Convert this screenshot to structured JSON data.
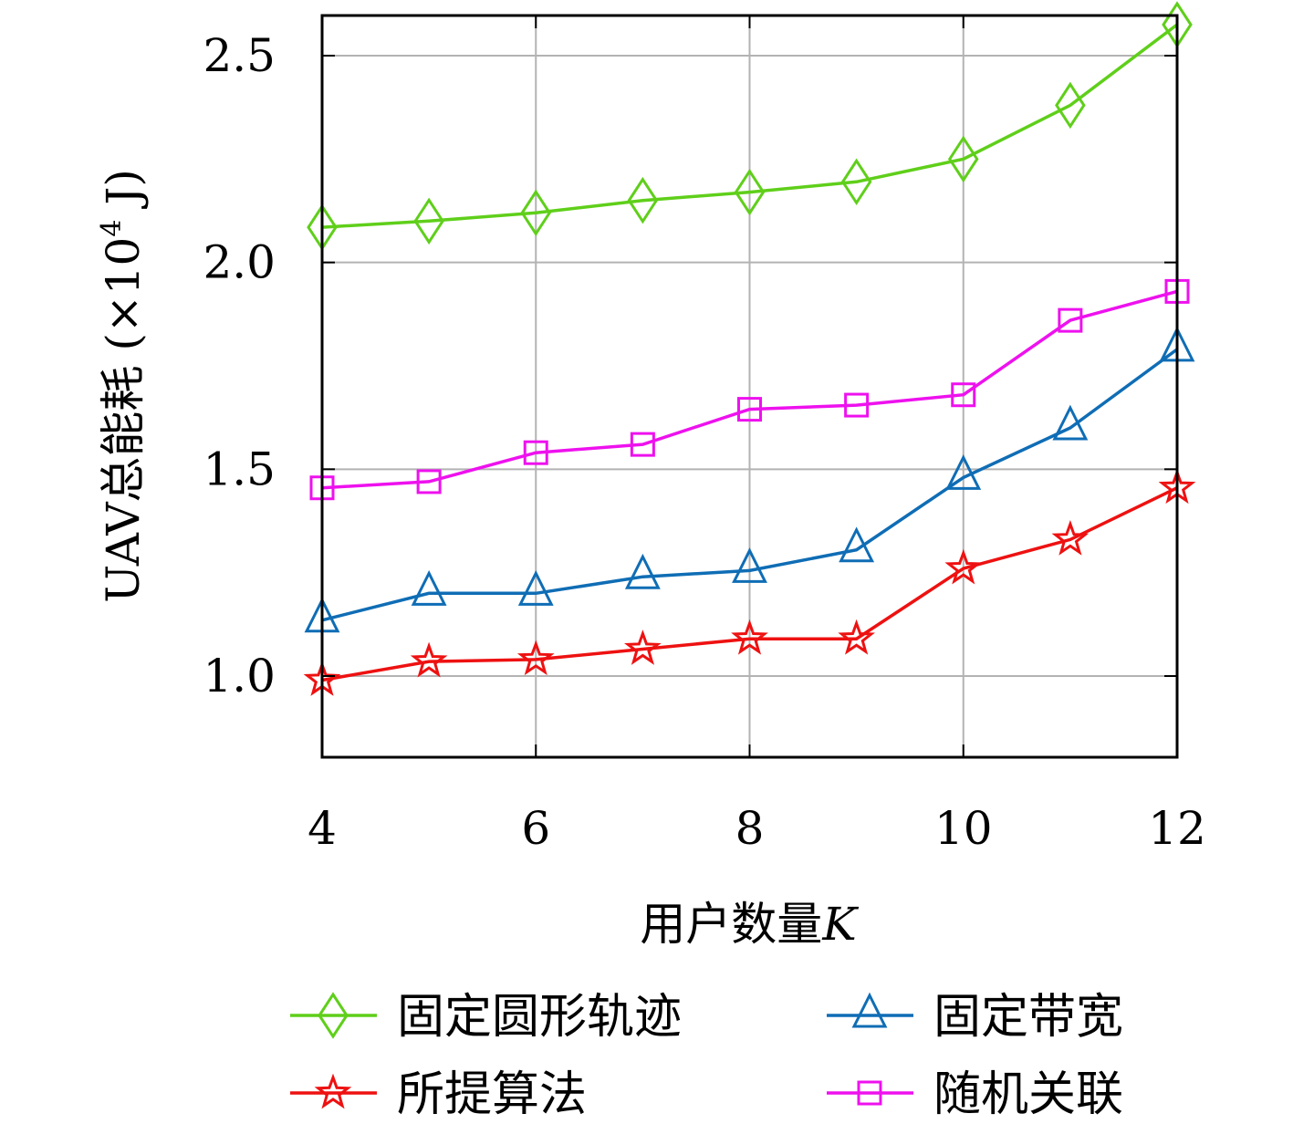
{
  "chart_data": {
    "type": "line",
    "xlabel": "用户数量",
    "xlabel_var": "K",
    "ylabel": "UAV总能耗 (×10",
    "ylabel_exp": "4",
    "ylabel_unit": " J)",
    "x": [
      4,
      5,
      6,
      7,
      8,
      9,
      10,
      11,
      12
    ],
    "xlim": [
      4,
      12
    ],
    "ylim": [
      0.8,
      2.6
    ],
    "xticks": [
      4,
      6,
      8,
      10,
      12
    ],
    "xtick_labels": [
      "4",
      "6",
      "8",
      "10",
      "12"
    ],
    "yticks": [
      1.0,
      1.5,
      2.0,
      2.5
    ],
    "ytick_labels": [
      "1.0",
      "1.5",
      "2.0",
      "2.5"
    ],
    "grid": true,
    "legend_position": "bottom",
    "series": [
      {
        "name": "固定圆形轨迹",
        "color": "#5fcf1a",
        "marker": "diamond",
        "values": [
          2.085,
          2.1,
          2.12,
          2.15,
          2.17,
          2.195,
          2.25,
          2.38,
          2.575
        ]
      },
      {
        "name": "固定带宽",
        "color": "#0f6db5",
        "marker": "triangle",
        "values": [
          1.135,
          1.2,
          1.2,
          1.24,
          1.255,
          1.305,
          1.48,
          1.6,
          1.79
        ]
      },
      {
        "name": "所提算法",
        "color": "#ee1111",
        "marker": "star",
        "values": [
          0.99,
          1.035,
          1.04,
          1.065,
          1.09,
          1.09,
          1.26,
          1.33,
          1.455
        ]
      },
      {
        "name": "随机关联",
        "color": "#ee11ee",
        "marker": "square",
        "values": [
          1.455,
          1.47,
          1.54,
          1.56,
          1.645,
          1.655,
          1.68,
          1.86,
          1.93
        ]
      }
    ]
  }
}
